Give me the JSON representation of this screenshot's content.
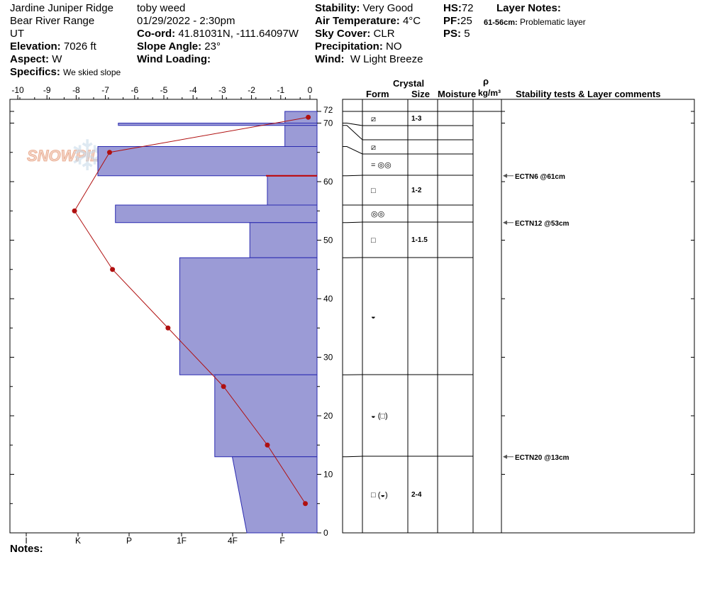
{
  "header": {
    "location": "Jardine Juniper Ridge",
    "range": "Bear River Range",
    "state": "UT",
    "elevation_label": "Elevation:",
    "elevation_value": "7026 ft",
    "aspect_label": "Aspect:",
    "aspect_value": "W",
    "specifics_label": "Specifics:",
    "specifics_value": "We skied slope",
    "observer": "toby weed",
    "datetime": "01/29/2022 - 2:30pm",
    "coord_label": "Co-ord:",
    "coord_value": "41.81031N, -111.64097W",
    "slope_label": "Slope Angle:",
    "slope_value": "23°",
    "wind_loading_label": "Wind Loading:",
    "stability_label": "Stability:",
    "stability_value": "Very Good",
    "air_temp_label": "Air Temperature:",
    "air_temp_value": "4°C",
    "sky_label": "Sky Cover:",
    "sky_value": "CLR",
    "precip_label": "Precipitation:",
    "precip_value": "NO",
    "wind_label": "Wind:",
    "wind_value": "W Light Breeze",
    "hs_label": "HS:",
    "hs_value": "72",
    "pf_label": "PF:",
    "pf_value": "25",
    "ps_label": "PS:",
    "ps_value": "5",
    "layer_notes_label": "Layer Notes:",
    "layer_note_range": "61-56cm:",
    "layer_note_text": "Problematic layer"
  },
  "table_headers": {
    "crystal": "Crystal",
    "form": "Form",
    "size": "Size",
    "moisture": "Moisture",
    "rho": "ρ",
    "density_unit": "kg/m³",
    "stability": "Stability tests & Layer comments"
  },
  "footer": {
    "notes_label": "Notes:"
  },
  "watermark": "SNOWPILOT",
  "colors": {
    "hardness_fill": "#9b9bd6",
    "hardness_stroke": "#2b2bb0",
    "temp_line": "#b01010",
    "weak_layer": "#c00000"
  },
  "chart_data": {
    "type": "snow-profile",
    "temperature_axis": {
      "label": "",
      "range": [
        -10,
        0
      ],
      "ticks": [
        "-10",
        "-9",
        "-8",
        "-7",
        "-6",
        "-5",
        "-4",
        "-3",
        "-2",
        "-1",
        "0"
      ]
    },
    "depth_axis": {
      "range": [
        0,
        72
      ],
      "ticks": [
        "0",
        "10",
        "20",
        "30",
        "40",
        "50",
        "60",
        "70",
        "72"
      ]
    },
    "hardness_axis": {
      "ticks": [
        "I",
        "K",
        "P",
        "1F",
        "4F",
        "F"
      ]
    },
    "temperature_profile": [
      {
        "depth": 71,
        "temp": -0.3
      },
      {
        "depth": 65,
        "temp": -7.1
      },
      {
        "depth": 55,
        "temp": -8.3
      },
      {
        "depth": 45,
        "temp": -7.0
      },
      {
        "depth": 35,
        "temp": -5.1
      },
      {
        "depth": 25,
        "temp": -3.2
      },
      {
        "depth": 15,
        "temp": -1.7
      },
      {
        "depth": 5,
        "temp": -0.4
      }
    ],
    "layers": [
      {
        "top": 72,
        "bottom": 70,
        "hardness_top": 1.1,
        "hardness_bottom": 1.1,
        "form": "⧄",
        "size": "1-3"
      },
      {
        "top": 70,
        "bottom": 69.6,
        "hardness_top": 6.8,
        "hardness_bottom": 6.8,
        "form": "",
        "size": ""
      },
      {
        "top": 69.6,
        "bottom": 66,
        "hardness_top": 1.1,
        "hardness_bottom": 1.1,
        "form": "⧄",
        "size": ""
      },
      {
        "top": 66,
        "bottom": 61,
        "hardness_top": 7.5,
        "hardness_bottom": 7.5,
        "form": "= ◎◎",
        "size": ""
      },
      {
        "top": 61,
        "bottom": 56,
        "hardness_top": 1.7,
        "hardness_bottom": 1.7,
        "form": "□",
        "size": "1-2"
      },
      {
        "top": 56,
        "bottom": 53,
        "hardness_top": 6.9,
        "hardness_bottom": 6.9,
        "form": "◎◎",
        "size": ""
      },
      {
        "top": 53,
        "bottom": 47,
        "hardness_top": 2.3,
        "hardness_bottom": 2.3,
        "form": "□",
        "size": "1-1.5"
      },
      {
        "top": 47,
        "bottom": 27,
        "hardness_top": 4.7,
        "hardness_bottom": 4.7,
        "form": "◒",
        "size": ""
      },
      {
        "top": 27,
        "bottom": 13,
        "hardness_top": 3.5,
        "hardness_bottom": 3.5,
        "form": "◒ (□)",
        "size": ""
      },
      {
        "top": 13,
        "bottom": 0,
        "hardness_top": 2.9,
        "hardness_bottom": 2.4,
        "form": "□ (◒)",
        "size": "2-4"
      }
    ],
    "weak_layers": [
      {
        "depth": 61
      }
    ],
    "stability_tests": [
      {
        "depth": 61,
        "label": "ECTN6 @61cm"
      },
      {
        "depth": 53,
        "label": "ECTN12 @53cm"
      },
      {
        "depth": 13,
        "label": "ECTN20 @13cm"
      }
    ]
  }
}
